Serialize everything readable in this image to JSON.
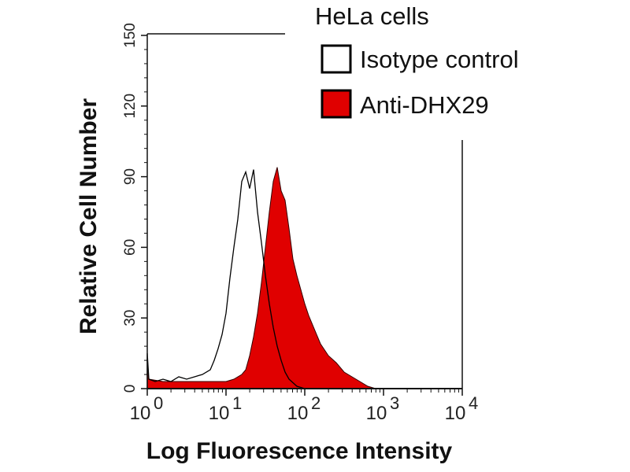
{
  "chart_data": {
    "type": "area",
    "title": "HeLa cells",
    "xlabel": "Log Fluorescence Intensity",
    "ylabel": "Relative Cell Number",
    "xscale": "log",
    "xlim": [
      1,
      10000
    ],
    "ylim": [
      0,
      150
    ],
    "x_ticks": [
      {
        "base": "10",
        "exp": "0"
      },
      {
        "base": "10",
        "exp": "1"
      },
      {
        "base": "10",
        "exp": "2"
      },
      {
        "base": "10",
        "exp": "3"
      },
      {
        "base": "10",
        "exp": "4"
      }
    ],
    "y_ticks": [
      "0",
      "30",
      "60",
      "90",
      "120",
      "150"
    ],
    "legend_placement": "top-right",
    "series": [
      {
        "name": "Isotype control",
        "style": "outline",
        "color": "#000000",
        "log10_x": [
          0,
          0.02,
          0.1,
          0.2,
          0.3,
          0.4,
          0.5,
          0.6,
          0.7,
          0.8,
          0.85,
          0.9,
          0.95,
          1.0,
          1.05,
          1.1,
          1.15,
          1.2,
          1.25,
          1.3,
          1.35,
          1.4,
          1.45,
          1.5,
          1.55,
          1.6,
          1.65,
          1.7,
          1.75,
          1.8,
          1.9,
          2.0
        ],
        "values": [
          15,
          4,
          3,
          4,
          3,
          5,
          4,
          5,
          6,
          8,
          12,
          17,
          23,
          32,
          47,
          60,
          72,
          88,
          92,
          85,
          93,
          75,
          62,
          48,
          36,
          26,
          18,
          12,
          7,
          4,
          1,
          0
        ]
      },
      {
        "name": "Anti-DHX29",
        "style": "filled",
        "color": "#e00000",
        "log10_x": [
          0,
          0.02,
          0.2,
          0.4,
          0.6,
          0.8,
          1.0,
          1.1,
          1.2,
          1.25,
          1.3,
          1.35,
          1.4,
          1.45,
          1.5,
          1.55,
          1.6,
          1.65,
          1.7,
          1.75,
          1.8,
          1.85,
          1.9,
          1.95,
          2.0,
          2.05,
          2.1,
          2.15,
          2.2,
          2.3,
          2.4,
          2.5,
          2.6,
          2.7,
          2.8,
          2.9
        ],
        "values": [
          10,
          4,
          3,
          3,
          3,
          3,
          3,
          4,
          6,
          8,
          14,
          22,
          32,
          45,
          60,
          75,
          88,
          94,
          84,
          80,
          68,
          55,
          48,
          42,
          36,
          31,
          27,
          23,
          19,
          14,
          11,
          7,
          5,
          3,
          1,
          0
        ]
      }
    ]
  }
}
